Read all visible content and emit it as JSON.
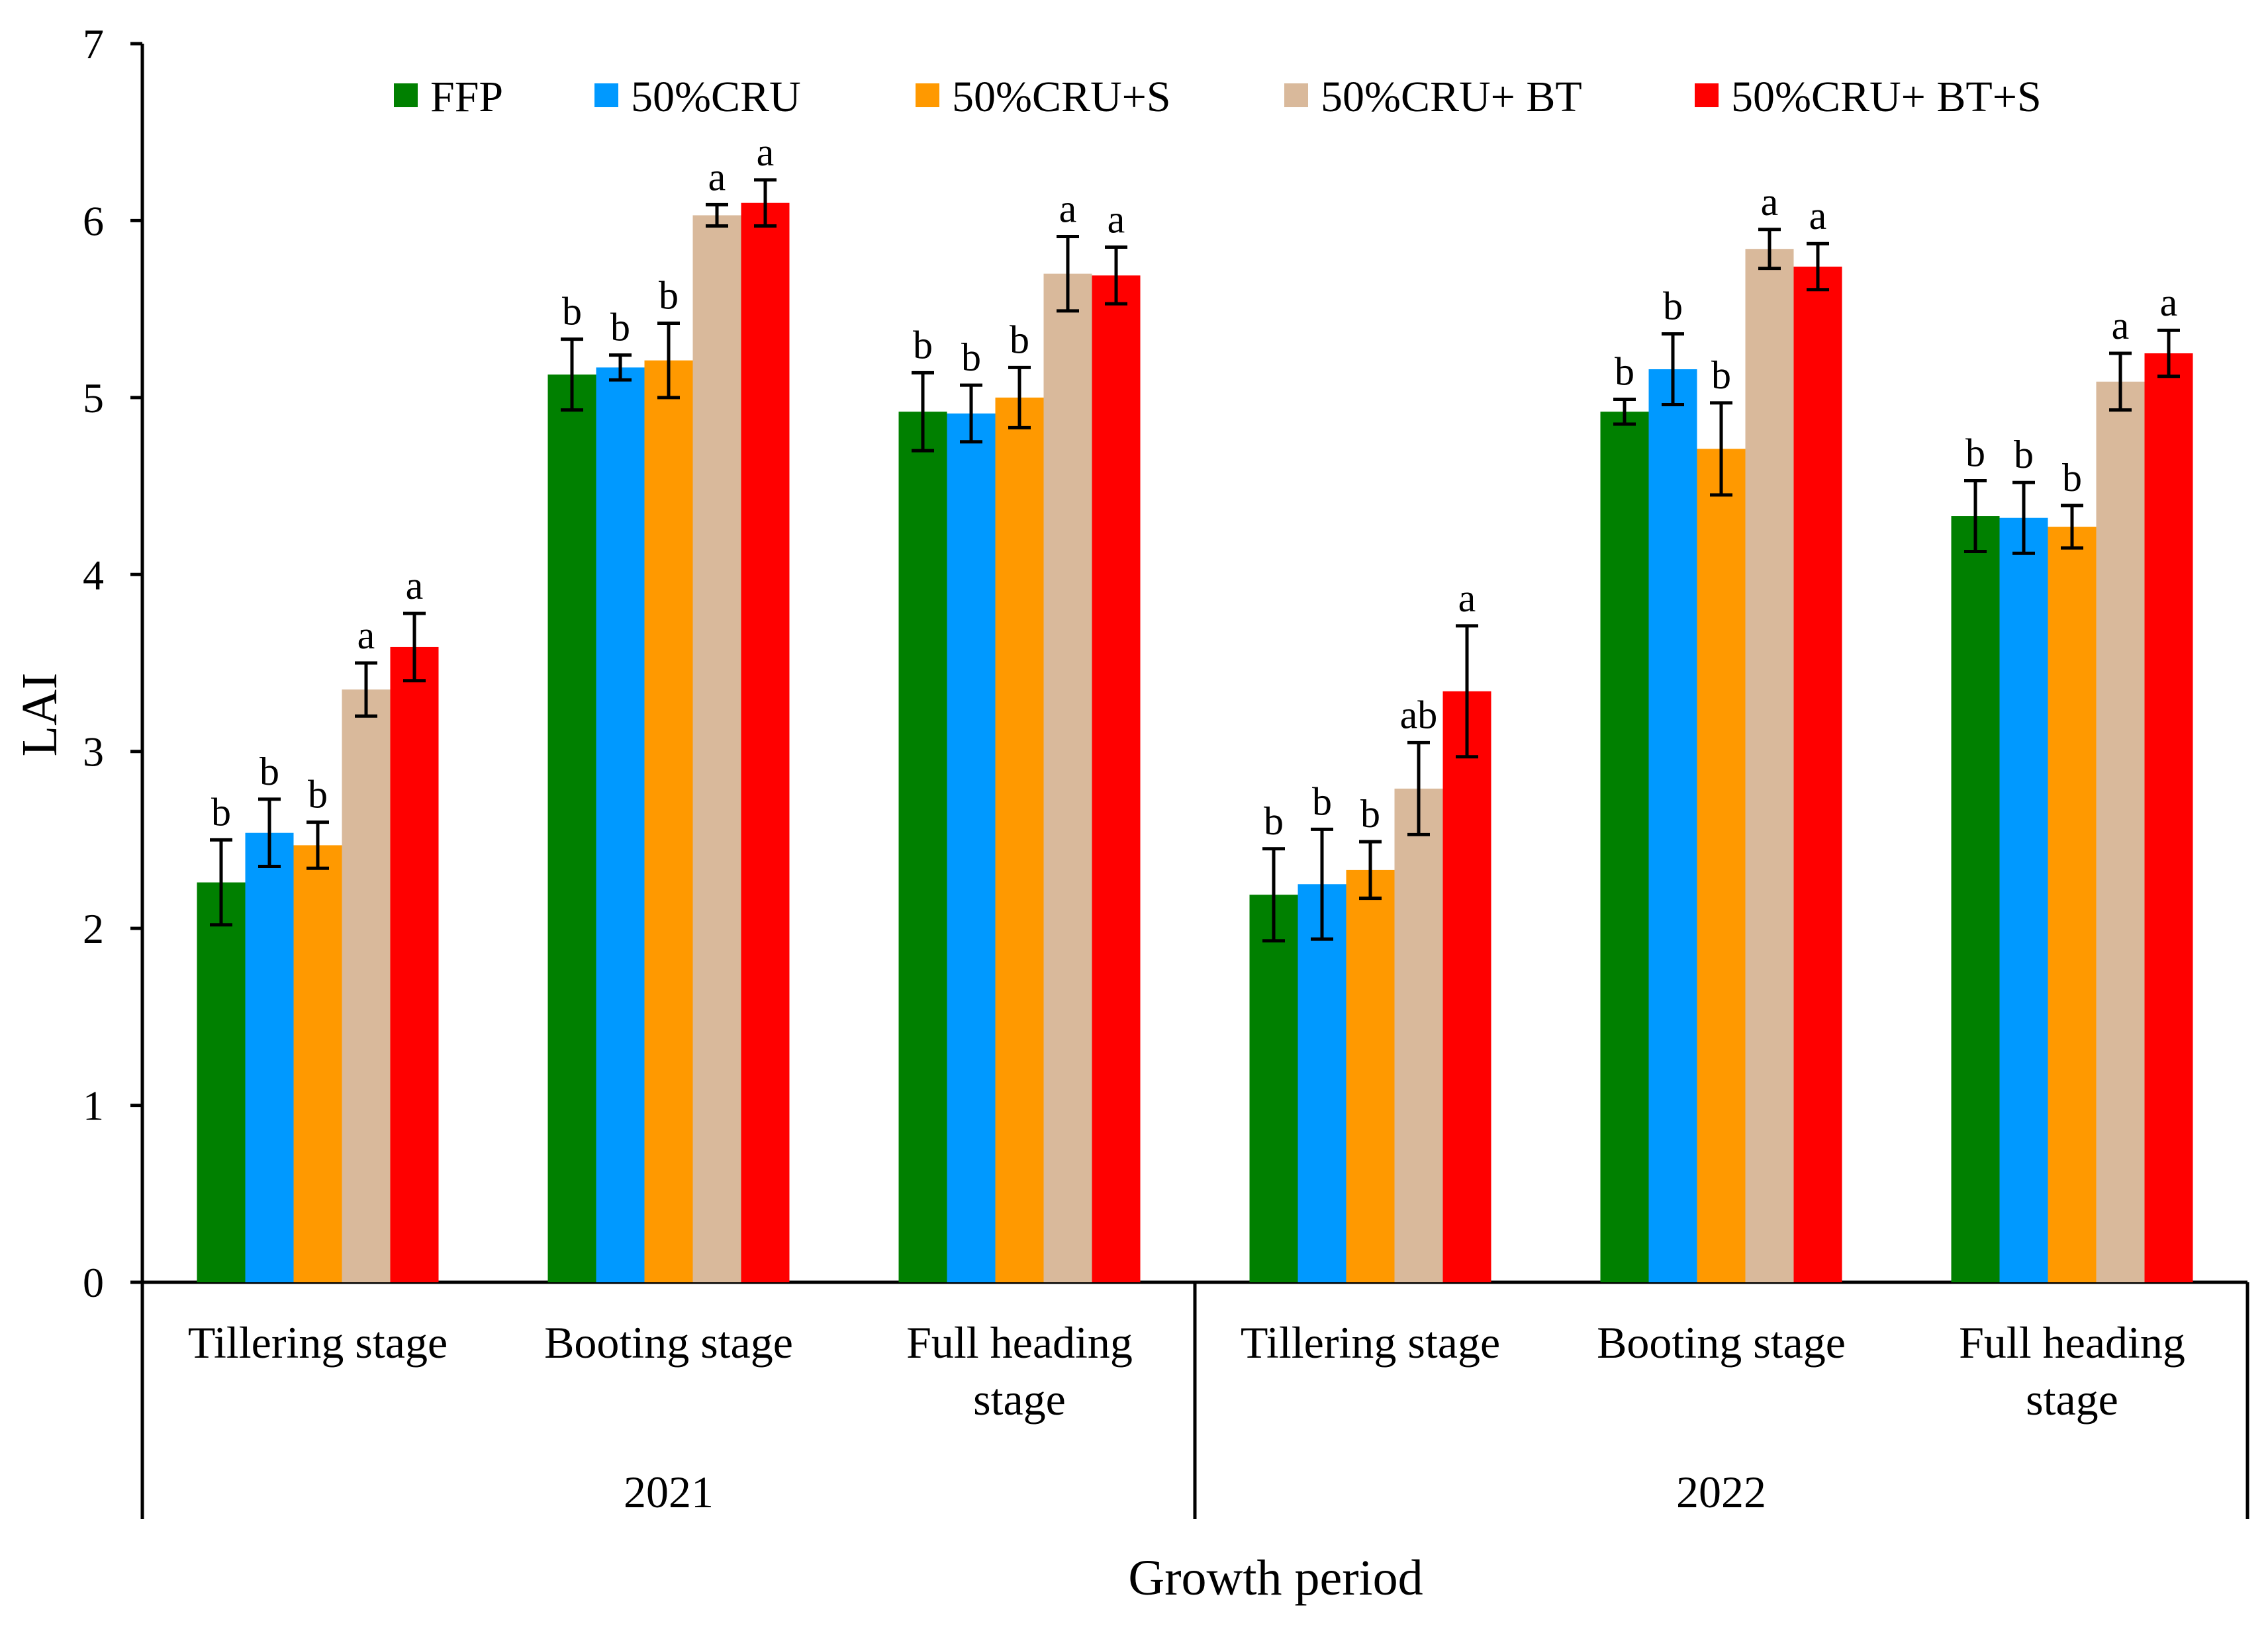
{
  "chart_data": {
    "type": "bar",
    "title": "",
    "ylabel": "LAI",
    "xlabel": "Growth period",
    "ylim": [
      0,
      7
    ],
    "yticks": [
      0,
      1,
      2,
      3,
      4,
      5,
      6,
      7
    ],
    "legend_position": "top",
    "groups": [
      {
        "year": "2021",
        "categories": [
          "Tillering  stage",
          "Booting stage",
          "Full heading stage"
        ]
      },
      {
        "year": "2022",
        "categories": [
          "Tillering  stage",
          "Booting stage",
          "Full heading stage"
        ]
      }
    ],
    "category_lines": [
      [
        "Tillering  stage"
      ],
      [
        "Booting stage"
      ],
      [
        "Full heading",
        "stage"
      ],
      [
        "Tillering  stage"
      ],
      [
        "Booting stage"
      ],
      [
        "Full heading",
        "stage"
      ]
    ],
    "series": [
      {
        "name": "FFP",
        "color": "#008000",
        "values": [
          2.26,
          5.13,
          4.92,
          2.19,
          4.92,
          4.33
        ],
        "errors": [
          0.24,
          0.2,
          0.22,
          0.26,
          0.07,
          0.2
        ],
        "labels": [
          "b",
          "b",
          "b",
          "b",
          "b",
          "b"
        ]
      },
      {
        "name": "50%CRU",
        "color": "#0099FF",
        "values": [
          2.54,
          5.17,
          4.91,
          2.25,
          5.16,
          4.32
        ],
        "errors": [
          0.19,
          0.07,
          0.16,
          0.31,
          0.2,
          0.2
        ],
        "labels": [
          "b",
          "b",
          "b",
          "b",
          "b",
          "b"
        ]
      },
      {
        "name": "50%CRU+S",
        "color": "#FF9900",
        "values": [
          2.47,
          5.21,
          5.0,
          2.33,
          4.71,
          4.27
        ],
        "errors": [
          0.13,
          0.21,
          0.17,
          0.16,
          0.26,
          0.12
        ],
        "labels": [
          "b",
          "b",
          "b",
          "b",
          "b",
          "b"
        ]
      },
      {
        "name": "50%CRU+ BT",
        "color": "#D9B99B",
        "values": [
          3.35,
          6.03,
          5.7,
          2.79,
          5.84,
          5.09
        ],
        "errors": [
          0.15,
          0.06,
          0.21,
          0.26,
          0.11,
          0.16
        ],
        "labels": [
          "a",
          "a",
          "a",
          "ab",
          "a",
          "a"
        ]
      },
      {
        "name": "50%CRU+ BT+S",
        "color": "#FF0000",
        "values": [
          3.59,
          6.1,
          5.69,
          3.34,
          5.74,
          5.25
        ],
        "errors": [
          0.19,
          0.13,
          0.16,
          0.37,
          0.13,
          0.13
        ],
        "labels": [
          "a",
          "a",
          "a",
          "a",
          "a",
          "a"
        ]
      }
    ]
  }
}
